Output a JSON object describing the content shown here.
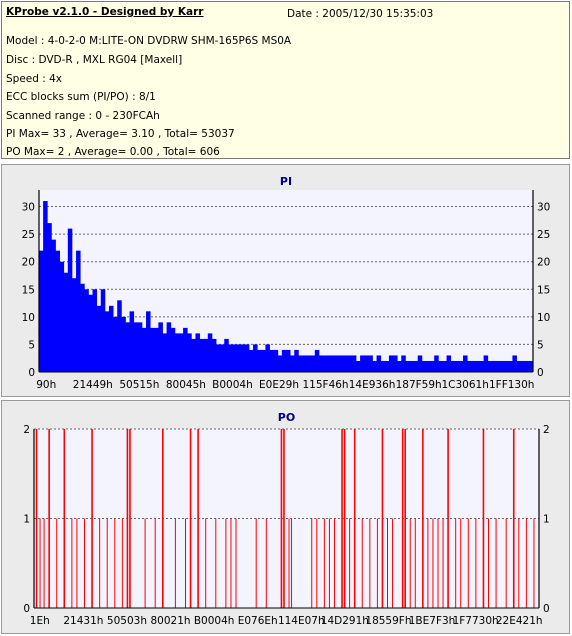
{
  "info": {
    "title": "KProbe v2.1.0 - Designed by Karr",
    "date": "Date : 2005/12/30 15:35:03",
    "lines": [
      "Model : 4-0-2-0 M:LITE-ON DVDRW SHM-165P6S MS0A",
      "Disc : DVD-R , MXL RG04 [Maxell]",
      "Speed : 4x",
      "ECC blocks sum (PI/PO) : 8/1",
      "Scanned range : 0 - 230FCAh",
      "PI Max= 33 , Average= 3.10 , Total= 53037",
      "PO Max= 2 , Average= 0.00 , Total= 606"
    ]
  },
  "colors": {
    "pi": "#0000ff",
    "po": "#ff0000",
    "plot_bg": "#f4f4ff",
    "panel_bg": "#ebebeb"
  },
  "chart_data": [
    {
      "type": "bar",
      "title": "PI",
      "ylim": [
        0,
        33
      ],
      "yticks": [
        0,
        5,
        10,
        15,
        20,
        25,
        30
      ],
      "xrange_hex": [
        "0",
        "230FCA"
      ],
      "xtick_labels": [
        "90h",
        "21449h",
        "50515h",
        "80045h",
        "B0004h",
        "E0E29h",
        "115F46h",
        "14E936h",
        "187F59h",
        "1C3061h",
        "1FF130h"
      ],
      "grid": "dashed-horizontal",
      "series": [
        {
          "values": [
            22,
            31,
            27,
            24,
            22,
            20,
            18,
            26,
            17,
            22,
            16,
            15,
            14,
            15,
            12,
            15,
            11,
            12,
            10,
            13,
            10,
            9,
            11,
            9,
            9,
            8,
            11,
            8,
            8,
            9,
            7,
            9,
            8,
            7,
            7,
            8,
            7,
            6,
            7,
            6,
            6,
            7,
            6,
            5,
            5,
            6,
            5,
            5,
            5,
            5,
            5,
            4,
            5,
            4,
            4,
            5,
            4,
            4,
            3,
            4,
            4,
            3,
            4,
            3,
            3,
            3,
            3,
            4,
            3,
            3,
            3,
            3,
            3,
            3,
            3,
            3,
            3,
            2,
            3,
            3,
            3,
            2,
            3,
            2,
            2,
            3,
            3,
            2,
            3,
            2,
            2,
            2,
            3,
            2,
            2,
            2,
            3,
            2,
            2,
            3,
            2,
            2,
            2,
            3,
            2,
            2,
            2,
            2,
            3,
            2,
            2,
            2,
            2,
            2,
            2,
            3,
            2,
            2,
            2,
            2
          ]
        }
      ]
    },
    {
      "type": "bar",
      "title": "PO",
      "ylim": [
        0,
        2
      ],
      "yticks": [
        0,
        1,
        2
      ],
      "xrange_hex": [
        "0",
        "230FCA"
      ],
      "xtick_labels": [
        "1Eh",
        "21431h",
        "50503h",
        "80021h",
        "B0004h",
        "E076Eh",
        "114E07h",
        "14D291h",
        "18559Fh",
        "1BE7F3h",
        "1F7730h",
        "22E421h"
      ],
      "grid": "dashed-horizontal",
      "series": [
        {
          "events": [
            [
              0.005,
              2
            ],
            [
              0.012,
              1
            ],
            [
              0.02,
              1
            ],
            [
              0.03,
              2
            ],
            [
              0.045,
              1
            ],
            [
              0.06,
              2
            ],
            [
              0.075,
              1
            ],
            [
              0.085,
              1
            ],
            [
              0.1,
              1
            ],
            [
              0.115,
              2
            ],
            [
              0.13,
              1
            ],
            [
              0.145,
              1
            ],
            [
              0.16,
              1
            ],
            [
              0.175,
              1
            ],
            [
              0.185,
              2
            ],
            [
              0.19,
              2
            ],
            [
              0.22,
              1
            ],
            [
              0.24,
              1
            ],
            [
              0.255,
              2
            ],
            [
              0.28,
              1
            ],
            [
              0.3,
              1
            ],
            [
              0.31,
              2
            ],
            [
              0.325,
              2
            ],
            [
              0.34,
              1
            ],
            [
              0.36,
              1
            ],
            [
              0.38,
              1
            ],
            [
              0.39,
              1
            ],
            [
              0.4,
              1
            ],
            [
              0.44,
              1
            ],
            [
              0.46,
              1
            ],
            [
              0.49,
              2
            ],
            [
              0.495,
              2
            ],
            [
              0.505,
              1
            ],
            [
              0.51,
              1
            ],
            [
              0.55,
              1
            ],
            [
              0.56,
              1
            ],
            [
              0.575,
              1
            ],
            [
              0.585,
              1
            ],
            [
              0.595,
              1
            ],
            [
              0.61,
              2
            ],
            [
              0.615,
              2
            ],
            [
              0.625,
              1
            ],
            [
              0.635,
              2
            ],
            [
              0.65,
              1
            ],
            [
              0.665,
              1
            ],
            [
              0.68,
              1
            ],
            [
              0.69,
              2
            ],
            [
              0.7,
              1
            ],
            [
              0.71,
              1
            ],
            [
              0.73,
              2
            ],
            [
              0.735,
              2
            ],
            [
              0.745,
              1
            ],
            [
              0.755,
              1
            ],
            [
              0.77,
              2
            ],
            [
              0.78,
              1
            ],
            [
              0.79,
              1
            ],
            [
              0.8,
              1
            ],
            [
              0.81,
              1
            ],
            [
              0.82,
              2
            ],
            [
              0.835,
              1
            ],
            [
              0.845,
              1
            ],
            [
              0.86,
              1
            ],
            [
              0.875,
              1
            ],
            [
              0.89,
              2
            ],
            [
              0.9,
              1
            ],
            [
              0.915,
              1
            ],
            [
              0.935,
              1
            ],
            [
              0.95,
              2
            ],
            [
              0.96,
              1
            ],
            [
              0.975,
              1
            ],
            [
              0.99,
              1
            ]
          ]
        }
      ]
    }
  ]
}
